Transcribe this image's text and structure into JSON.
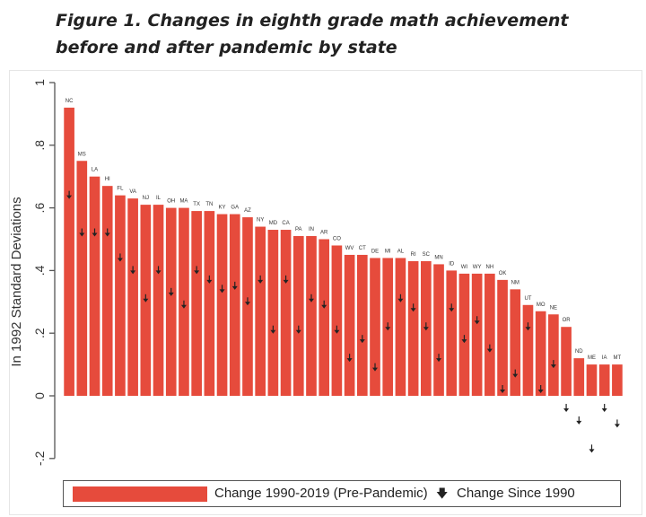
{
  "figure_title_line1": "Figure 1. Changes in eighth grade math achievement",
  "figure_title_line2": "before and after pandemic by state",
  "colors": {
    "bar": "#e64b3c",
    "marker": "#222222",
    "axis": "#555555"
  },
  "chart_data": {
    "type": "bar",
    "ylabel": "In 1992 Standard Deviations",
    "ylim": [
      -0.22,
      1.0
    ],
    "yticks": [
      1,
      0.8,
      0.6,
      0.4,
      0.2,
      0,
      -0.2
    ],
    "ytick_labels": [
      "1",
      ".8",
      ".6",
      ".4",
      ".2",
      "0",
      "-.2"
    ],
    "grid": false,
    "legend_position": "bottom",
    "categories": [
      "NC",
      "MS",
      "LA",
      "HI",
      "FL",
      "VA",
      "NJ",
      "IL",
      "OH",
      "MA",
      "TX",
      "TN",
      "KY",
      "GA",
      "AZ",
      "NY",
      "MD",
      "CA",
      "PA",
      "IN",
      "AR",
      "CO",
      "WV",
      "CT",
      "DE",
      "MI",
      "AL",
      "RI",
      "SC",
      "MN",
      "ID",
      "WI",
      "WY",
      "NH",
      "OK",
      "NM",
      "UT",
      "MO",
      "NE",
      "OR",
      "ND",
      "ME",
      "IA",
      "MT"
    ],
    "series": [
      {
        "name": "Change 1990-2019 (Pre-Pandemic)",
        "type": "bar",
        "values": [
          0.92,
          0.75,
          0.7,
          0.67,
          0.64,
          0.63,
          0.61,
          0.61,
          0.6,
          0.6,
          0.59,
          0.59,
          0.58,
          0.58,
          0.57,
          0.54,
          0.53,
          0.53,
          0.51,
          0.51,
          0.5,
          0.48,
          0.45,
          0.45,
          0.44,
          0.44,
          0.44,
          0.43,
          0.43,
          0.42,
          0.4,
          0.39,
          0.39,
          0.39,
          0.37,
          0.34,
          0.29,
          0.27,
          0.26,
          0.22,
          0.12,
          0.1,
          0.1,
          0.1
        ]
      },
      {
        "name": "Change Since 1990",
        "type": "marker",
        "values": [
          0.64,
          0.52,
          0.52,
          0.52,
          0.44,
          0.4,
          0.31,
          0.4,
          0.33,
          0.29,
          0.4,
          0.37,
          0.34,
          0.35,
          0.3,
          0.37,
          0.21,
          0.37,
          0.21,
          0.31,
          0.29,
          0.21,
          0.12,
          0.18,
          0.09,
          0.22,
          0.31,
          0.28,
          0.22,
          0.12,
          0.28,
          0.18,
          0.24,
          0.15,
          0.02,
          0.07,
          0.22,
          0.02,
          0.1,
          -0.04,
          -0.08,
          -0.17,
          -0.04,
          -0.09
        ]
      }
    ]
  }
}
